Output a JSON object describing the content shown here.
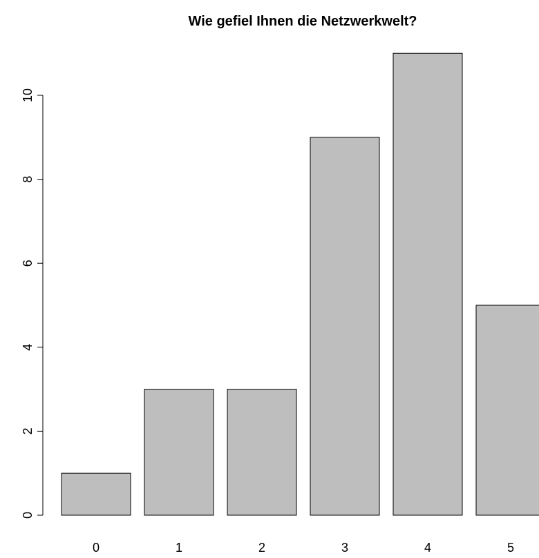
{
  "chart_data": {
    "type": "bar",
    "title": "Wie gefiel Ihnen die Netzwerkwelt?",
    "xlabel": "",
    "ylabel": "",
    "categories": [
      "0",
      "1",
      "2",
      "3",
      "4",
      "5"
    ],
    "values": [
      1,
      3,
      3,
      9,
      11,
      5
    ],
    "ylim": [
      0,
      11
    ],
    "yticks": [
      0,
      2,
      4,
      6,
      8,
      10
    ],
    "bar_color": "#bebebe",
    "border_color": "#000000",
    "grid": false,
    "legend": "none"
  }
}
